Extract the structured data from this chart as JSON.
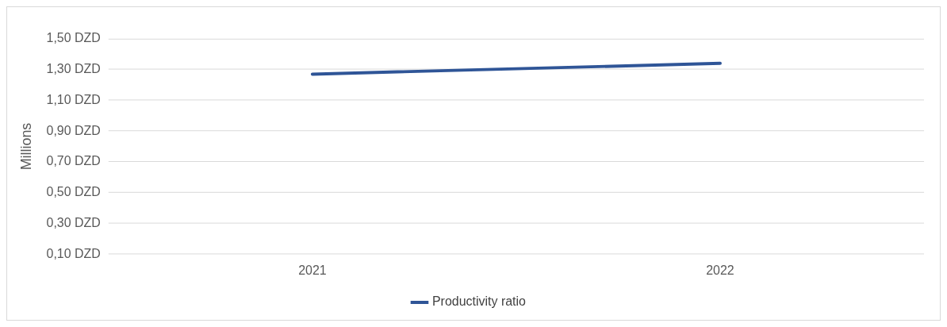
{
  "chart_data": {
    "type": "line",
    "ylabel": "Millions",
    "categories": [
      "2021",
      "2022"
    ],
    "series": [
      {
        "name": "Productivity ratio",
        "color": "#2f5597",
        "values": [
          1.27,
          1.34
        ]
      }
    ],
    "ylim": [
      0.1,
      1.5
    ],
    "yticks": [
      {
        "value": 0.1,
        "label": "0,10 DZD"
      },
      {
        "value": 0.3,
        "label": "0,30 DZD"
      },
      {
        "value": 0.5,
        "label": "0,50 DZD"
      },
      {
        "value": 0.7,
        "label": "0,70 DZD"
      },
      {
        "value": 0.9,
        "label": "0,90 DZD"
      },
      {
        "value": 1.1,
        "label": "1,10 DZD"
      },
      {
        "value": 1.3,
        "label": "1,30 DZD"
      },
      {
        "value": 1.5,
        "label": "1,50 DZD"
      }
    ],
    "grid": "y",
    "legend": "bottom",
    "marker": "none",
    "line_style": "solid"
  }
}
